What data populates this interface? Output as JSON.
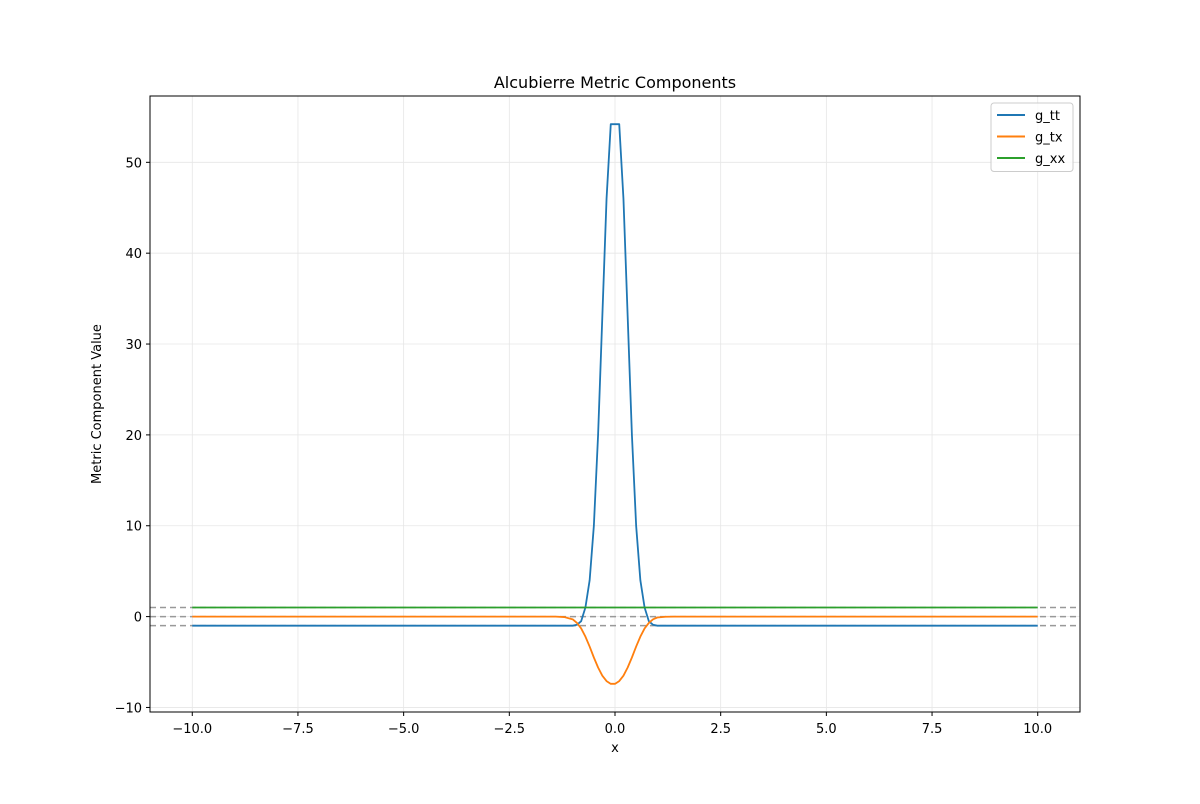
{
  "chart_data": {
    "type": "line",
    "title": "Alcubierre Metric Components",
    "xlabel": "x",
    "ylabel": "Metric Component Value",
    "xlim": [
      -11.0,
      11.0
    ],
    "ylim": [
      -10.5,
      57.3
    ],
    "xticks": [
      -10.0,
      -7.5,
      -5.0,
      -2.5,
      0.0,
      2.5,
      5.0,
      7.5,
      10.0
    ],
    "xtick_labels": [
      "−10.0",
      "−7.5",
      "−5.0",
      "−2.5",
      "0.0",
      "2.5",
      "5.0",
      "7.5",
      "10.0"
    ],
    "yticks": [
      -10,
      0,
      10,
      20,
      30,
      40,
      50
    ],
    "ytick_labels": [
      "−10",
      "0",
      "10",
      "20",
      "30",
      "40",
      "50"
    ],
    "grid": true,
    "legend_position": "upper-right",
    "reference_lines": [
      {
        "y": 1,
        "style": "dashed",
        "color": "#999999"
      },
      {
        "y": 0,
        "style": "dashed",
        "color": "#999999"
      },
      {
        "y": -1,
        "style": "dashed",
        "color": "#999999"
      }
    ],
    "series": [
      {
        "name": "g_tt",
        "color": "#1f77b4",
        "x": [
          -10.0,
          -1.0,
          -0.9,
          -0.8,
          -0.7,
          -0.6,
          -0.5,
          -0.4,
          -0.3,
          -0.2,
          -0.1,
          -0.05,
          0.0,
          0.05,
          0.1,
          0.2,
          0.3,
          0.4,
          0.5,
          0.6,
          0.7,
          0.8,
          0.9,
          1.0,
          10.0
        ],
        "y": [
          -1.0,
          -1.0,
          -0.9,
          -0.5,
          1.0,
          4.0,
          10.0,
          20.0,
          33.0,
          46.0,
          54.2,
          54.2,
          54.2,
          54.2,
          54.2,
          46.0,
          33.0,
          20.0,
          10.0,
          4.0,
          1.0,
          -0.5,
          -0.9,
          -1.0,
          -1.0
        ]
      },
      {
        "name": "g_tx",
        "color": "#ff7f0e",
        "x": [
          -10.0,
          -1.4,
          -1.2,
          -1.0,
          -0.9,
          -0.8,
          -0.7,
          -0.6,
          -0.5,
          -0.4,
          -0.3,
          -0.2,
          -0.1,
          0.0,
          0.1,
          0.2,
          0.3,
          0.4,
          0.5,
          0.6,
          0.7,
          0.8,
          0.9,
          1.0,
          1.2,
          1.4,
          10.0
        ],
        "y": [
          0.0,
          0.0,
          -0.05,
          -0.3,
          -0.7,
          -1.3,
          -2.2,
          -3.3,
          -4.5,
          -5.6,
          -6.5,
          -7.1,
          -7.4,
          -7.4,
          -7.1,
          -6.5,
          -5.6,
          -4.5,
          -3.3,
          -2.2,
          -1.3,
          -0.7,
          -0.3,
          -0.1,
          -0.02,
          0.0,
          0.0
        ]
      },
      {
        "name": "g_xx",
        "color": "#2ca02c",
        "x": [
          -10.0,
          10.0
        ],
        "y": [
          1.0,
          1.0
        ]
      }
    ]
  }
}
